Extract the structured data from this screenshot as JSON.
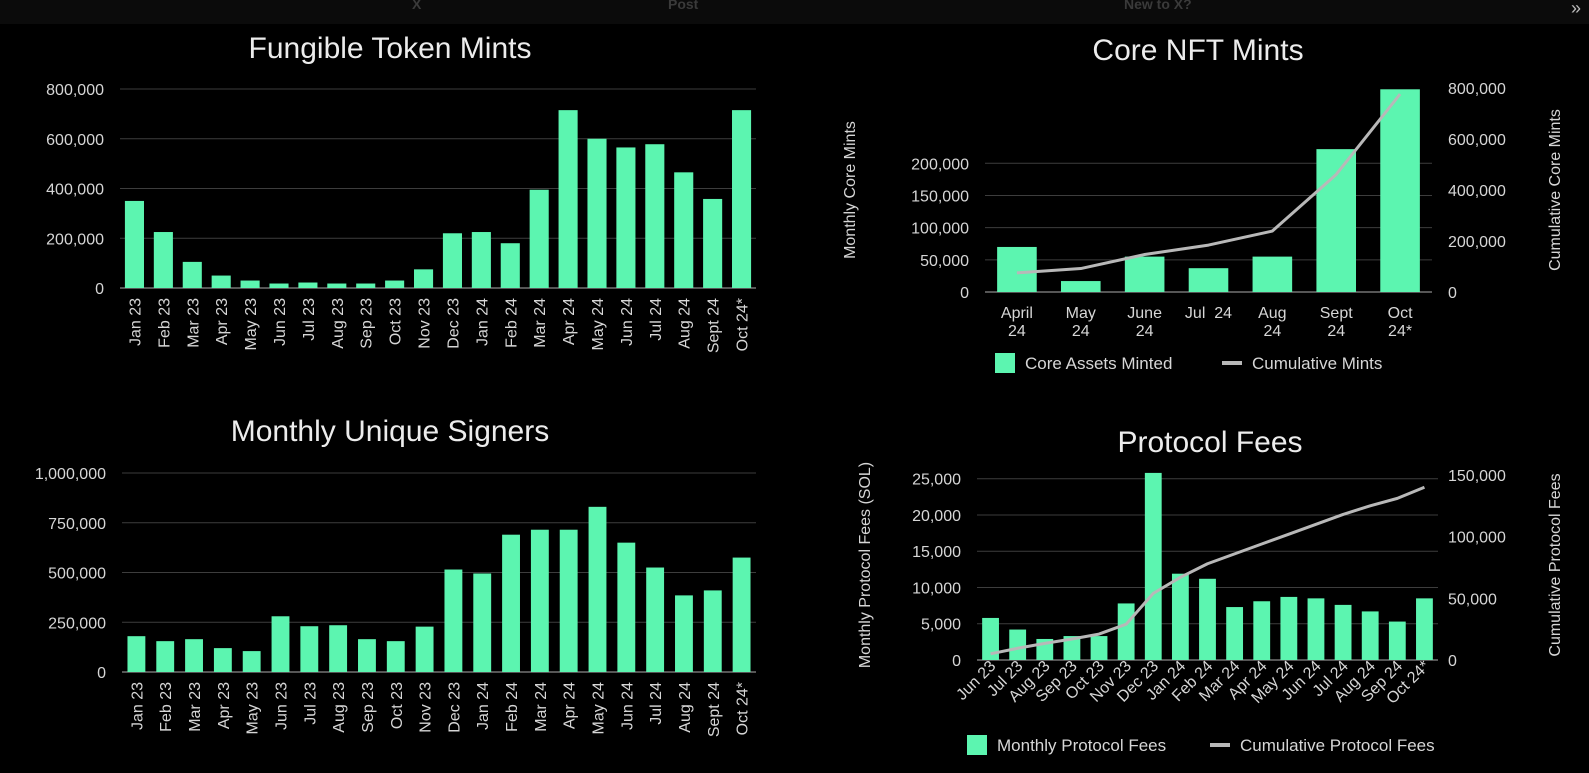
{
  "topbar": {
    "items": [
      "X",
      "Post",
      "New to X?"
    ],
    "expand_icon": "double-chevron-right-icon"
  },
  "colors": {
    "bar": "#5cf5b0",
    "line": "#b8b8b8",
    "background": "#000000",
    "grid": "#3d3d3d"
  },
  "chart_data": [
    {
      "type": "bar",
      "title": "Fungible Token Mints",
      "categories": [
        "Jan 23",
        "Feb 23",
        "Mar 23",
        "Apr 23",
        "May 23",
        "Jun 23",
        "Jul 23",
        "Aug 23",
        "Sep 23",
        "Oct 23",
        "Nov 23",
        "Dec 23",
        "Jan 24",
        "Feb 24",
        "Mar 24",
        "Apr 24",
        "May 24",
        "Jun 24",
        "Jul 24",
        "Aug 24",
        "Sept 24",
        "Oct 24*"
      ],
      "values": [
        350000,
        225000,
        105000,
        50000,
        30000,
        18000,
        22000,
        18000,
        18000,
        30000,
        75000,
        220000,
        225000,
        180000,
        395000,
        715000,
        600000,
        565000,
        578000,
        465000,
        358000,
        715000
      ],
      "ylim": [
        0,
        800000
      ],
      "yticks": [
        0,
        200000,
        400000,
        600000,
        800000
      ],
      "ytick_labels": [
        "0",
        "200,000",
        "400,000",
        "600,000",
        "800,000"
      ],
      "grid": true
    },
    {
      "type": "bar+line",
      "title": "Core NFT Mints",
      "categories": [
        "April 24",
        "May 24",
        "June 24",
        "Jul  24",
        "Aug 24",
        "Sept 24",
        "Oct 24*"
      ],
      "series": [
        {
          "name": "Core Assets Minted",
          "type": "bar",
          "axis": "left",
          "values": [
            70000,
            17000,
            55000,
            37000,
            55000,
            222000,
            315000
          ]
        },
        {
          "name": "Cumulative Mints",
          "type": "line",
          "axis": "right",
          "values": [
            75000,
            92000,
            147000,
            184000,
            239000,
            461000,
            776000
          ]
        }
      ],
      "ylabel": "Monthly Core Mints",
      "y2label": "Cumulative Core Mints",
      "ylim": [
        0,
        317000
      ],
      "yticks": [
        0,
        50000,
        100000,
        150000,
        200000
      ],
      "ytick_labels": [
        "0",
        "50,000",
        "100,000",
        "150,000",
        "200,000"
      ],
      "y2lim": [
        0,
        800000
      ],
      "y2ticks": [
        0,
        200000,
        400000,
        600000,
        800000
      ],
      "y2tick_labels": [
        "0",
        "200,000",
        "400,000",
        "600,000",
        "800,000"
      ],
      "legend": "bottom",
      "grid": true
    },
    {
      "type": "bar",
      "title": "Monthly Unique Signers",
      "categories": [
        "Jan 23",
        "Feb 23",
        "Mar 23",
        "Apr 23",
        "May 23",
        "Jun 23",
        "Jul 23",
        "Aug 23",
        "Sep 23",
        "Oct 23",
        "Nov 23",
        "Dec 23",
        "Jan 24",
        "Feb 24",
        "Mar 24",
        "Apr 24",
        "May 24",
        "Jun 24",
        "Jul 24",
        "Aug 24",
        "Sept 24",
        "Oct 24*"
      ],
      "values": [
        180000,
        155000,
        165000,
        120000,
        105000,
        280000,
        230000,
        235000,
        165000,
        155000,
        228000,
        515000,
        495000,
        690000,
        715000,
        715000,
        830000,
        650000,
        525000,
        385000,
        410000,
        575000
      ],
      "ylim": [
        0,
        1000000
      ],
      "yticks": [
        0,
        250000,
        500000,
        750000,
        1000000
      ],
      "ytick_labels": [
        "0",
        "250,000",
        "500,000",
        "750,000",
        "1,000,000"
      ],
      "grid": true
    },
    {
      "type": "bar+line",
      "title": "Protocol Fees",
      "categories": [
        "Jun 23",
        "Jul 23",
        "Aug 23",
        "Sep 23",
        "Oct 23",
        "Nov 23",
        "Dec 23",
        "Jan 24",
        "Feb 24",
        "Mar 24",
        "Apr 24",
        "May 24",
        "Jun 24",
        "Jul 24",
        "Aug 24",
        "Sep 24",
        "Oct 24*"
      ],
      "series": [
        {
          "name": "Monthly Protocol Fees",
          "type": "bar",
          "axis": "left",
          "values": [
            5800,
            4200,
            2900,
            3300,
            3300,
            7800,
            25800,
            11900,
            11200,
            7300,
            8100,
            8700,
            8500,
            7600,
            6700,
            5300,
            8500
          ]
        },
        {
          "name": "Cumulative Protocol Fees",
          "type": "line",
          "axis": "right",
          "values": [
            5000,
            9500,
            13500,
            17000,
            21000,
            29000,
            54000,
            67000,
            78000,
            86000,
            94000,
            102000,
            110000,
            118000,
            125000,
            131000,
            140000
          ]
        }
      ],
      "ylabel": "Monthly Protocol Fees (SOL)",
      "y2label": "Cumulative Protocol Fees",
      "ylim": [
        0,
        26200
      ],
      "yticks": [
        0,
        5000,
        10000,
        15000,
        20000,
        25000
      ],
      "ytick_labels": [
        "0",
        "5,000",
        "10,000",
        "15,000",
        "20,000",
        "25,000"
      ],
      "y2lim": [
        0,
        154000
      ],
      "y2ticks": [
        0,
        50000,
        100000,
        150000
      ],
      "y2tick_labels": [
        "0",
        "50,000",
        "100,000",
        "150,000"
      ],
      "legend": "bottom",
      "grid": true
    }
  ]
}
